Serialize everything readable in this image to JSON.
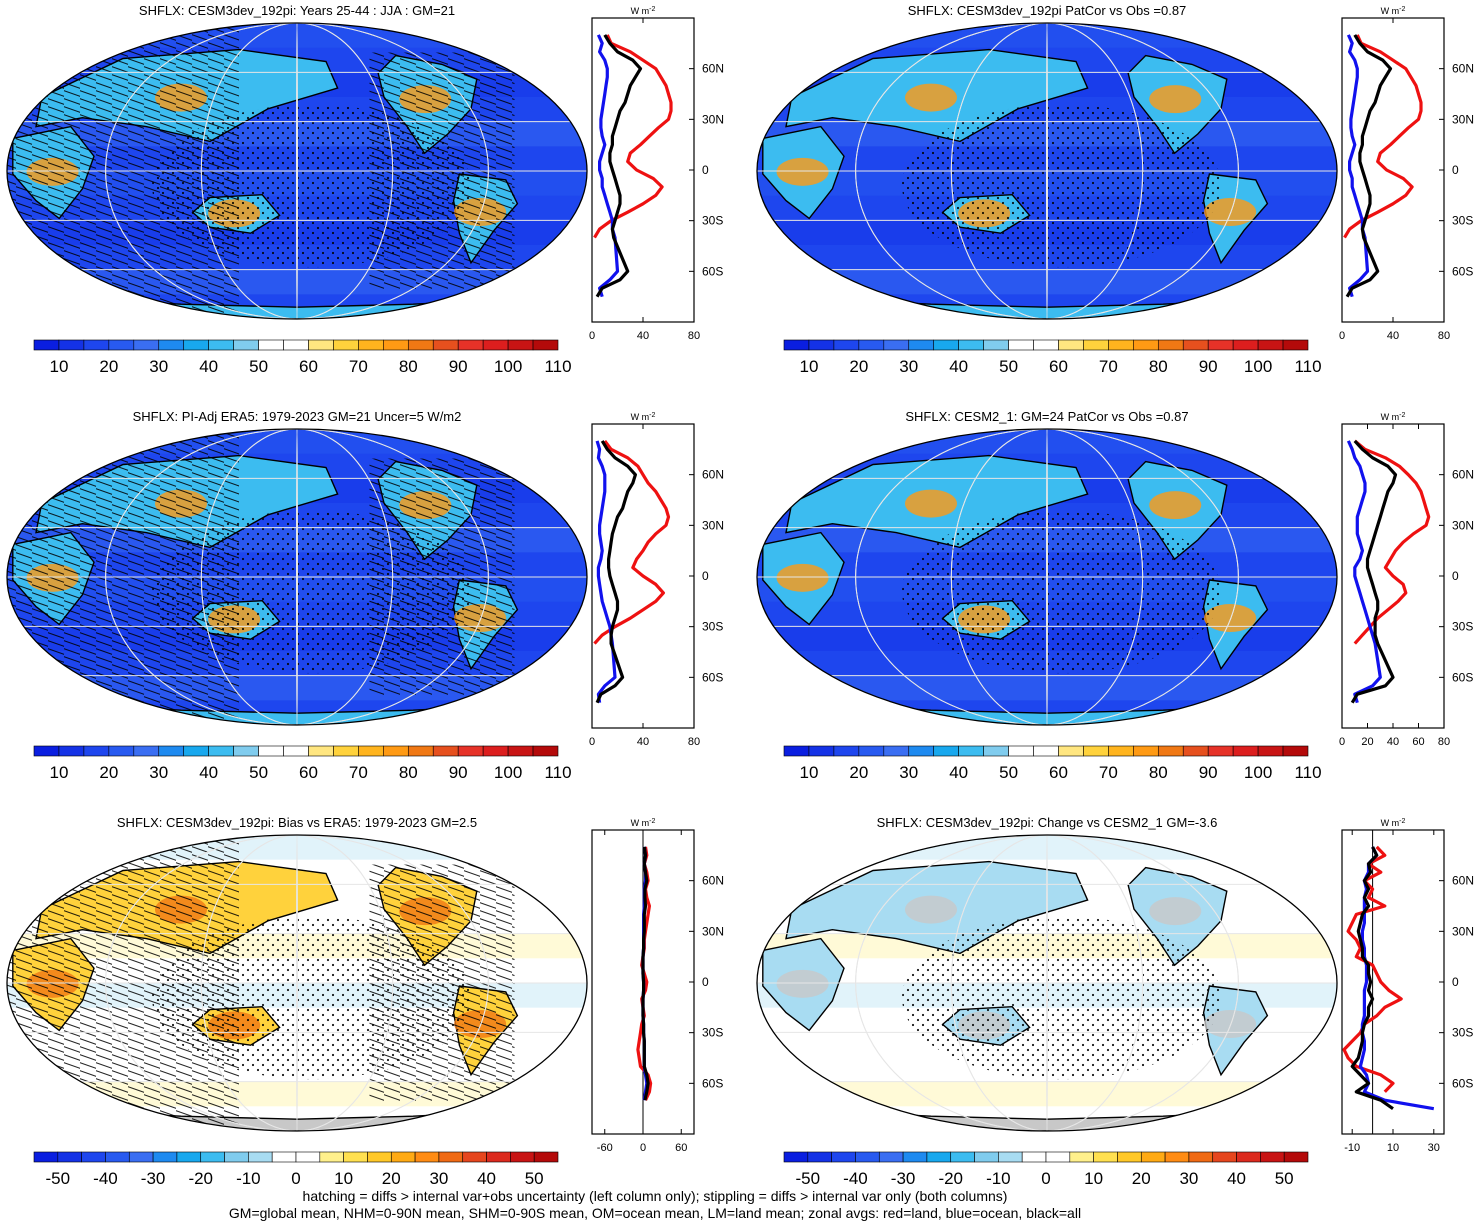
{
  "footer": {
    "line1": "hatching = diffs > internal var+obs uncertainty (left column only); stippling = diffs > internal var only (both columns)",
    "line2": "GM=global mean, NHM=0-90N mean, SHM=0-90S mean, OM=ocean mean, LM=land mean; zonal avgs: red=land, blue=ocean, black=all"
  },
  "colors": {
    "land": "#ee1111",
    "ocean": "#1111ee",
    "all": "#000000",
    "abs_scale": [
      "#0a1ee0",
      "#1432e6",
      "#1e46ee",
      "#285af0",
      "#3a6ef2",
      "#1e8af0",
      "#18a8ee",
      "#3cbcf0",
      "#80ccee",
      "#ffffff",
      "#ffffff",
      "#ffe680",
      "#ffd23c",
      "#ffb41e",
      "#ff9a14",
      "#f07814",
      "#e6501e",
      "#e63228",
      "#dc1e1e",
      "#c81414",
      "#b40a0a"
    ],
    "diff_scale": [
      "#0a1ee0",
      "#1432e6",
      "#1e46ee",
      "#285af0",
      "#3a6ef2",
      "#1e8af0",
      "#18a8ee",
      "#3cbcf0",
      "#80ccee",
      "#a8dcf2",
      "#ffffff",
      "#ffffff",
      "#fff08c",
      "#ffe050",
      "#ffc828",
      "#ffaa14",
      "#ff8c14",
      "#f06a14",
      "#e6461e",
      "#dc2a1e",
      "#c81414",
      "#b40a0a"
    ],
    "map_abs_bg": "#1e46ee",
    "map_diff_bg": "#ffffff",
    "land_mask": "#c8c8c8"
  },
  "zonal_lat_ticks": [
    "60N",
    "30N",
    "0",
    "30S",
    "60S"
  ],
  "units_label": "W m",
  "units_exp": "-2",
  "panels": [
    {
      "title": "SHFLX: CESM3dev_192pi: Years 25-44 : JJA : GM=21",
      "kind": "abs",
      "hatch": true,
      "cbar_labels": [
        "10",
        "20",
        "30",
        "40",
        "50",
        "60",
        "70",
        "80",
        "90",
        "100",
        "110"
      ],
      "zonal_xticks": [
        "0",
        "40",
        "80"
      ],
      "zonal_xlim": [
        0,
        80
      ],
      "chart_data": {
        "type": "line",
        "lat": [
          80,
          75,
          70,
          65,
          60,
          55,
          50,
          45,
          40,
          35,
          30,
          25,
          20,
          15,
          10,
          5,
          0,
          -5,
          -10,
          -15,
          -20,
          -25,
          -30,
          -35,
          -40,
          -60,
          -65,
          -70,
          -75
        ],
        "series": [
          {
            "color_key": "land",
            "values": [
              12,
              15,
              30,
              40,
              50,
              54,
              58,
              60,
              62,
              62,
              60,
              52,
              45,
              38,
              30,
              28,
              35,
              48,
              55,
              50,
              40,
              28,
              15,
              6,
              2,
              null,
              null,
              null,
              null
            ]
          },
          {
            "color_key": "ocean",
            "values": [
              5,
              8,
              6,
              10,
              12,
              12,
              11,
              10,
              9,
              8,
              7,
              7,
              8,
              10,
              8,
              6,
              6,
              8,
              8,
              10,
              12,
              14,
              16,
              16,
              18,
              20,
              14,
              6,
              8
            ]
          },
          {
            "color_key": "all",
            "values": [
              10,
              14,
              20,
              32,
              38,
              34,
              30,
              28,
              26,
              22,
              20,
              18,
              16,
              16,
              14,
              14,
              16,
              18,
              20,
              22,
              22,
              20,
              18,
              16,
              17,
              28,
              22,
              8,
              4
            ]
          }
        ]
      }
    },
    {
      "title": "SHFLX: CESM3dev_192pi PatCor vs Obs =0.87",
      "kind": "abs",
      "hatch": false,
      "cbar_labels": [
        "10",
        "20",
        "30",
        "40",
        "50",
        "60",
        "70",
        "80",
        "90",
        "100",
        "110"
      ],
      "zonal_xticks": [
        "0",
        "40",
        "80"
      ],
      "zonal_xlim": [
        0,
        80
      ],
      "chart_data": {
        "type": "line",
        "lat": [
          80,
          75,
          70,
          65,
          60,
          55,
          50,
          45,
          40,
          35,
          30,
          25,
          20,
          15,
          10,
          5,
          0,
          -5,
          -10,
          -15,
          -20,
          -25,
          -30,
          -35,
          -40,
          -60,
          -65,
          -70,
          -75
        ],
        "series": [
          {
            "color_key": "land",
            "values": [
              12,
              15,
              30,
              40,
              50,
              54,
              58,
              60,
              62,
              62,
              60,
              52,
              45,
              38,
              30,
              28,
              35,
              48,
              55,
              50,
              40,
              28,
              15,
              6,
              2,
              null,
              null,
              null,
              null
            ]
          },
          {
            "color_key": "ocean",
            "values": [
              5,
              8,
              6,
              10,
              12,
              12,
              11,
              10,
              9,
              8,
              7,
              7,
              8,
              10,
              8,
              6,
              6,
              8,
              8,
              10,
              12,
              14,
              16,
              16,
              18,
              20,
              14,
              6,
              8
            ]
          },
          {
            "color_key": "all",
            "values": [
              10,
              14,
              20,
              32,
              38,
              34,
              30,
              28,
              26,
              22,
              20,
              18,
              16,
              16,
              14,
              14,
              16,
              18,
              20,
              22,
              22,
              20,
              18,
              16,
              17,
              28,
              22,
              8,
              4
            ]
          }
        ]
      }
    },
    {
      "title": "SHFLX: PI-Adj ERA5: 1979-2023 GM=21 Uncer=5 W/m2",
      "kind": "abs",
      "hatch": true,
      "cbar_labels": [
        "10",
        "20",
        "30",
        "40",
        "50",
        "60",
        "70",
        "80",
        "90",
        "100",
        "110"
      ],
      "zonal_xticks": [
        "0",
        "40",
        "80"
      ],
      "zonal_xlim": [
        0,
        80
      ],
      "chart_data": {
        "type": "line",
        "lat": [
          80,
          75,
          70,
          65,
          60,
          55,
          50,
          45,
          40,
          35,
          30,
          25,
          20,
          15,
          10,
          5,
          0,
          -5,
          -10,
          -15,
          -20,
          -25,
          -30,
          -35,
          -40,
          -60,
          -65,
          -70,
          -75
        ],
        "series": [
          {
            "color_key": "land",
            "values": [
              10,
              15,
              28,
              36,
              40,
              44,
              50,
              54,
              58,
              60,
              58,
              50,
              44,
              40,
              35,
              32,
              40,
              50,
              56,
              50,
              40,
              30,
              18,
              8,
              2,
              null,
              null,
              null,
              null
            ]
          },
          {
            "color_key": "ocean",
            "values": [
              4,
              6,
              5,
              8,
              10,
              10,
              10,
              9,
              8,
              7,
              6,
              6,
              7,
              8,
              7,
              5,
              5,
              6,
              7,
              8,
              10,
              12,
              14,
              15,
              16,
              18,
              10,
              5,
              6
            ]
          },
          {
            "color_key": "all",
            "values": [
              8,
              12,
              18,
              28,
              34,
              32,
              28,
              26,
              24,
              20,
              18,
              16,
              15,
              14,
              13,
              13,
              14,
              16,
              18,
              20,
              20,
              18,
              16,
              15,
              15,
              24,
              18,
              7,
              4
            ]
          }
        ]
      }
    },
    {
      "title": "SHFLX: CESM2_1: GM=24 PatCor vs Obs =0.87",
      "kind": "abs",
      "hatch": false,
      "cbar_labels": [
        "10",
        "20",
        "30",
        "40",
        "50",
        "60",
        "70",
        "80",
        "90",
        "100",
        "110"
      ],
      "zonal_xticks": [
        "0",
        "20",
        "40",
        "60",
        "80"
      ],
      "zonal_xlim": [
        0,
        80
      ],
      "chart_data": {
        "type": "line",
        "lat": [
          80,
          75,
          70,
          65,
          60,
          55,
          50,
          45,
          40,
          35,
          30,
          25,
          20,
          15,
          10,
          5,
          0,
          -5,
          -10,
          -15,
          -20,
          -25,
          -30,
          -35,
          -40,
          -60,
          -65,
          -70,
          -75
        ],
        "series": [
          {
            "color_key": "land",
            "values": [
              10,
              18,
              34,
              45,
              52,
              58,
              62,
              64,
              66,
              68,
              66,
              56,
              48,
              42,
              38,
              34,
              40,
              48,
              50,
              44,
              36,
              28,
              22,
              16,
              10,
              null,
              null,
              null,
              null
            ]
          },
          {
            "color_key": "ocean",
            "values": [
              5,
              8,
              10,
              14,
              16,
              18,
              18,
              16,
              14,
              12,
              12,
              12,
              14,
              16,
              14,
              10,
              10,
              12,
              14,
              16,
              18,
              20,
              22,
              24,
              26,
              30,
              24,
              10,
              12
            ]
          },
          {
            "color_key": "all",
            "values": [
              10,
              16,
              24,
              36,
              42,
              40,
              36,
              34,
              32,
              30,
              28,
              26,
              24,
              22,
              20,
              20,
              22,
              24,
              26,
              28,
              28,
              26,
              26,
              26,
              28,
              40,
              34,
              12,
              8
            ]
          }
        ]
      }
    },
    {
      "title": "SHFLX: CESM3dev_192pi: Bias vs ERA5: 1979-2023 GM=2.5",
      "kind": "diff",
      "hatch": true,
      "cbar_labels": [
        "-50",
        "-40",
        "-30",
        "-20",
        "-10",
        "0",
        "10",
        "20",
        "30",
        "40",
        "50"
      ],
      "zonal_xticks": [
        "-60",
        "0",
        "60"
      ],
      "zonal_xlim": [
        -80,
        80
      ],
      "chart_data": {
        "type": "line",
        "lat": [
          80,
          75,
          70,
          65,
          60,
          55,
          50,
          45,
          40,
          35,
          30,
          25,
          20,
          15,
          10,
          5,
          0,
          -5,
          -10,
          -15,
          -20,
          -25,
          -30,
          -35,
          -40,
          -45,
          -50,
          -55,
          -60,
          -65,
          -70
        ],
        "series": [
          {
            "color_key": "land",
            "values": [
              4,
              6,
              2,
              6,
              8,
              4,
              6,
              10,
              8,
              6,
              4,
              2,
              2,
              0,
              -2,
              2,
              6,
              4,
              -2,
              0,
              2,
              -2,
              -4,
              -6,
              -8,
              -6,
              -4,
              8,
              12,
              10,
              4
            ]
          },
          {
            "color_key": "ocean",
            "values": [
              2,
              4,
              2,
              4,
              4,
              2,
              2,
              2,
              1,
              1,
              1,
              1,
              1,
              0,
              0,
              0,
              1,
              1,
              0,
              0,
              0,
              1,
              1,
              2,
              2,
              2,
              2,
              4,
              6,
              4,
              2
            ]
          },
          {
            "color_key": "all",
            "values": [
              2,
              4,
              2,
              4,
              6,
              3,
              3,
              4,
              2,
              2,
              2,
              1,
              1,
              0,
              0,
              0,
              1,
              1,
              0,
              0,
              0,
              1,
              1,
              2,
              2,
              2,
              2,
              6,
              8,
              6,
              3
            ]
          }
        ]
      }
    },
    {
      "title": "SHFLX: CESM3dev_192pi: Change vs CESM2_1 GM=-3.6",
      "kind": "diff",
      "hatch": false,
      "cbar_labels": [
        "-50",
        "-40",
        "-30",
        "-20",
        "-10",
        "0",
        "10",
        "20",
        "30",
        "40",
        "50"
      ],
      "zonal_xticks": [
        "-10",
        "10",
        "30"
      ],
      "zonal_xlim": [
        -15,
        35
      ],
      "chart_data": {
        "type": "line",
        "lat": [
          80,
          75,
          70,
          65,
          60,
          55,
          50,
          45,
          40,
          35,
          30,
          25,
          20,
          15,
          10,
          5,
          0,
          -5,
          -10,
          -15,
          -20,
          -25,
          -30,
          -35,
          -40,
          -45,
          -50,
          -55,
          -60,
          -65,
          -70,
          -75
        ],
        "series": [
          {
            "color_key": "land",
            "values": [
              2,
              6,
              -2,
              4,
              -4,
              0,
              -2,
              6,
              -8,
              -10,
              -12,
              -8,
              -6,
              -8,
              0,
              2,
              4,
              8,
              14,
              6,
              2,
              -4,
              -6,
              -10,
              -14,
              -12,
              -8,
              4,
              10,
              6,
              null,
              null
            ]
          },
          {
            "color_key": "ocean",
            "values": [
              0,
              2,
              -2,
              -2,
              -4,
              -3,
              -4,
              -4,
              -4,
              -4,
              -5,
              -5,
              -4,
              -4,
              -3,
              -3,
              -3,
              -4,
              -4,
              -4,
              -4,
              -5,
              -5,
              -4,
              -4,
              -5,
              -6,
              -3,
              -2,
              -4,
              6,
              30
            ]
          },
          {
            "color_key": "all",
            "values": [
              0,
              2,
              -2,
              -1,
              -4,
              -2,
              -4,
              -2,
              -5,
              -6,
              -7,
              -6,
              -5,
              -5,
              -2,
              -2,
              -1,
              -2,
              0,
              -2,
              -2,
              -4,
              -5,
              -5,
              -6,
              -7,
              -10,
              -6,
              -2,
              -8,
              4,
              10
            ]
          }
        ]
      }
    }
  ]
}
